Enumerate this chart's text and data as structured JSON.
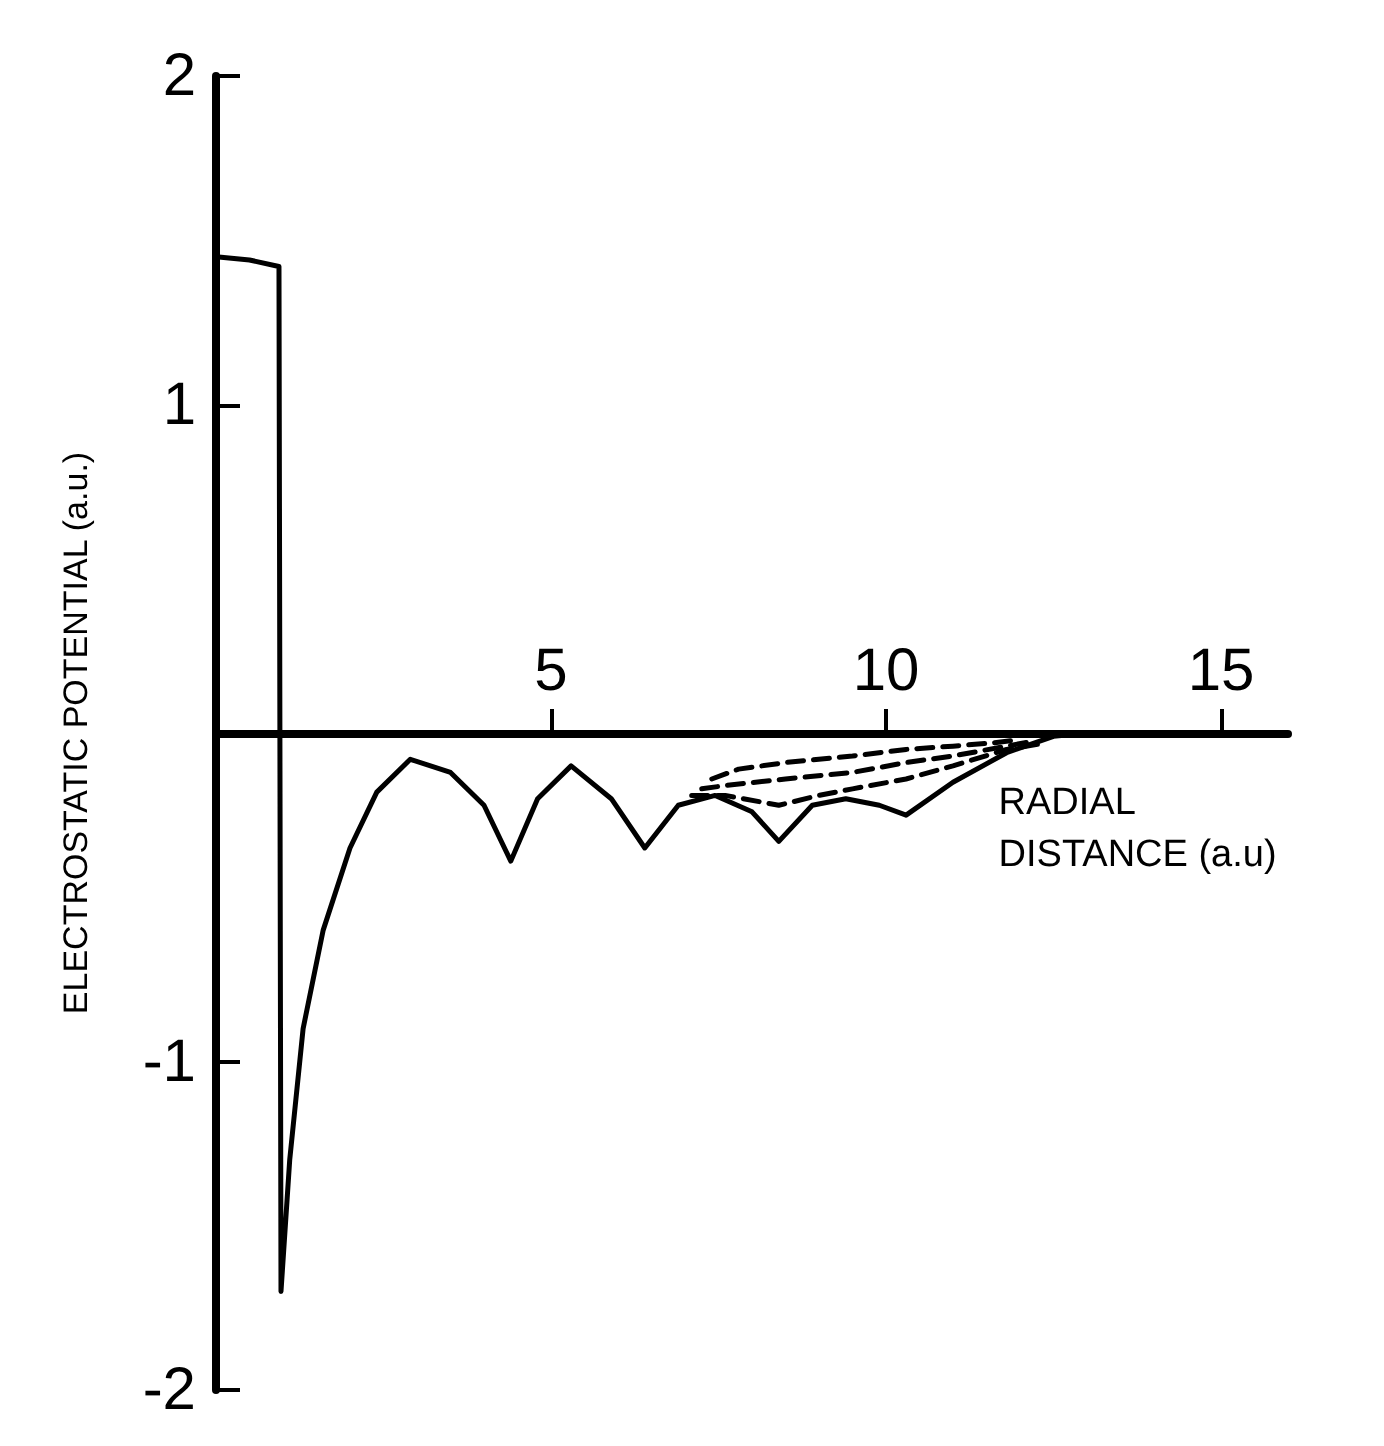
{
  "chart_data": {
    "type": "line",
    "xlabel": "RADIAL DISTANCE (a.u)",
    "ylabel": "ELECTROSTATIC POTENTIAL (a.u.)",
    "xlim": [
      0,
      16
    ],
    "xticks": [
      5,
      10,
      15
    ],
    "ylim": [
      -2,
      2
    ],
    "yticks": [
      -2,
      -1,
      1,
      2
    ],
    "grid": false,
    "marker": "none",
    "series": [
      {
        "color": "#000000",
        "line_style": "solid",
        "x": [
          0,
          0.5,
          0.94,
          0.97,
          1.1,
          1.3,
          1.6,
          2.0,
          2.4,
          2.9,
          3.5,
          4.0,
          4.4,
          4.8,
          5.3,
          5.9,
          6.4,
          6.9,
          7.45,
          8.0,
          8.4,
          8.9,
          9.4,
          9.9,
          10.3,
          11.0,
          11.8,
          12.5,
          13.0
        ],
        "values": [
          1.45,
          1.44,
          1.42,
          -1.7,
          -1.3,
          -0.9,
          -0.6,
          -0.35,
          -0.18,
          -0.08,
          -0.12,
          -0.22,
          -0.39,
          -0.2,
          -0.1,
          -0.2,
          -0.35,
          -0.22,
          -0.19,
          -0.24,
          -0.33,
          -0.22,
          -0.2,
          -0.22,
          -0.25,
          -0.15,
          -0.06,
          -0.01,
          0
        ]
      },
      {
        "color": "#000000",
        "line_style": "dashed",
        "x": [
          7.4,
          7.8,
          8.5,
          9.5,
          10.3,
          11.0,
          11.6,
          12.0
        ],
        "values": [
          -0.14,
          -0.11,
          -0.09,
          -0.07,
          -0.05,
          -0.04,
          -0.03,
          -0.02
        ]
      },
      {
        "color": "#000000",
        "line_style": "dashed",
        "x": [
          7.25,
          7.6,
          8.5,
          9.5,
          10.3,
          11.0,
          11.8,
          12.2
        ],
        "values": [
          -0.17,
          -0.16,
          -0.14,
          -0.12,
          -0.09,
          -0.07,
          -0.04,
          -0.025
        ]
      },
      {
        "color": "#000000",
        "line_style": "dashed",
        "x": [
          7.1,
          7.6,
          8.4,
          9.0,
          9.5,
          10.3,
          11.0,
          11.8,
          12.4
        ],
        "values": [
          -0.19,
          -0.19,
          -0.22,
          -0.19,
          -0.17,
          -0.14,
          -0.1,
          -0.05,
          -0.03
        ]
      }
    ]
  }
}
